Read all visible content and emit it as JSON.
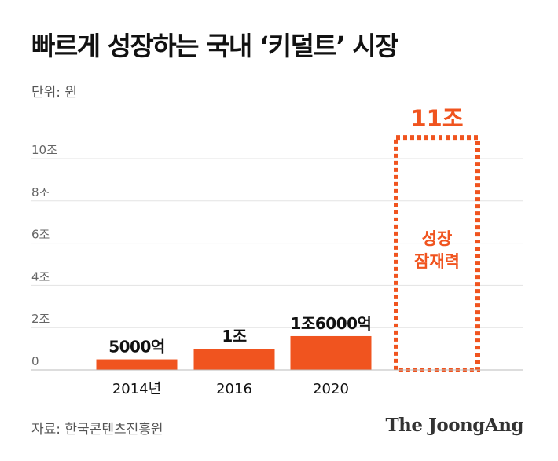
{
  "header": {
    "title": "빠르게 성장하는 국내 ‘키덜트’ 시장",
    "unit_label": "단위: 원"
  },
  "footer": {
    "source": "자료: 한국콘텐츠진흥원",
    "logo": "The JoongAng"
  },
  "colors": {
    "accent": "#f0541f",
    "grid": "#e3e3e3",
    "axis_text": "#666666",
    "text": "#111111"
  },
  "chart_data": {
    "type": "bar",
    "title": "빠르게 성장하는 국내 ‘키덜트’ 시장",
    "xlabel": "",
    "ylabel": "단위: 원",
    "ylim": [
      0,
      10
    ],
    "yticks": [
      0,
      2,
      4,
      6,
      8,
      10
    ],
    "ytick_labels": [
      "0",
      "2조",
      "4조",
      "6조",
      "8조",
      "10조"
    ],
    "categories": [
      "2014년",
      "2016",
      "2020",
      ""
    ],
    "values": [
      0.5,
      1,
      1.6,
      11
    ],
    "data_labels": [
      "5000억",
      "1조",
      "1조6000억",
      "11조"
    ],
    "bar_styles": [
      "solid",
      "solid",
      "solid",
      "dashed-outline"
    ],
    "annotations": [
      "성장",
      "잠재력"
    ],
    "grid": true
  }
}
